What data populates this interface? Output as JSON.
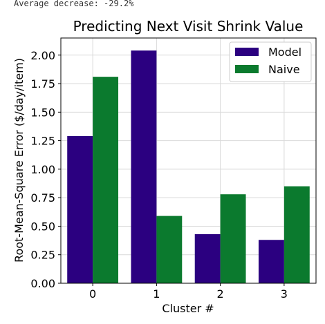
{
  "console": {
    "line": "Average decrease: -29.2%"
  },
  "chart_data": {
    "type": "bar",
    "title": "Predicting Next Visit Shrink Value",
    "xlabel": "Cluster #",
    "ylabel": "Root-Mean-Square Error ($/day/item)",
    "categories": [
      "0",
      "1",
      "2",
      "3"
    ],
    "series": [
      {
        "name": "Model",
        "color": "#2b0080",
        "values": [
          1.29,
          2.04,
          0.43,
          0.38
        ]
      },
      {
        "name": "Naive",
        "color": "#0b7a2e",
        "values": [
          1.81,
          0.59,
          0.78,
          0.85
        ]
      }
    ],
    "ylim": [
      0,
      2.15
    ],
    "yticks": [
      "0.00",
      "0.25",
      "0.50",
      "0.75",
      "1.00",
      "1.25",
      "1.50",
      "1.75",
      "2.00"
    ],
    "grid": true,
    "legend_position": "top-right"
  }
}
